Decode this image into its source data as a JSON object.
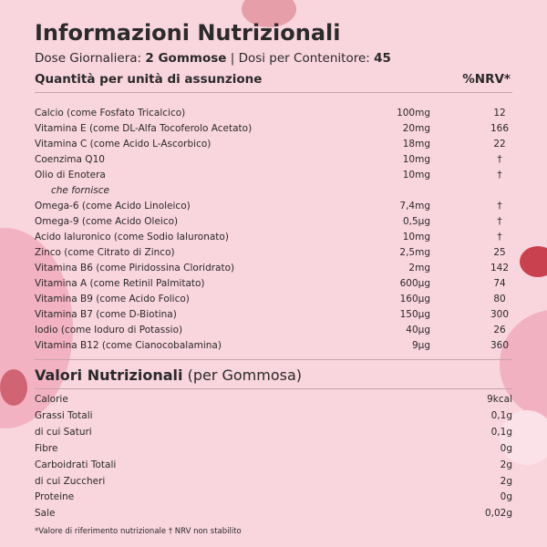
{
  "header": {
    "title": "Informazioni Nutrizionali",
    "dose_label": "Dose Giornaliera: ",
    "dose_value": "2 Gommose",
    "containers_label": "| Dosi per Contenitore: ",
    "containers_value": "45"
  },
  "ingredients": {
    "column_name": "Quantità per unità di assunzione",
    "column_nrv": "%NRV*",
    "rows": [
      {
        "name": "Calcio (come Fosfato Tricalcico)",
        "amount": "100mg",
        "nrv": "12"
      },
      {
        "name": "Vitamina E (come DL-Alfa Tocoferolo Acetato)",
        "amount": "20mg",
        "nrv": "166"
      },
      {
        "name": "Vitamina C (come Acido L-Ascorbico)",
        "amount": "18mg",
        "nrv": "22"
      },
      {
        "name": "Coenzima Q10",
        "amount": "10mg",
        "nrv": "†"
      },
      {
        "name": "Olio di Enotera",
        "amount": "10mg",
        "nrv": "†"
      },
      {
        "name": "che fornisce"
      },
      {
        "name": "Omega-6 (come Acido Linoleico)",
        "amount": "7,4mg",
        "nrv": "†"
      },
      {
        "name": "Omega-9 (come Acido Oleico)",
        "amount": "0,5µg",
        "nrv": "†"
      },
      {
        "name": "Acido Ialuronico (come Sodio Ialuronato)",
        "amount": "10mg",
        "nrv": "†"
      },
      {
        "name": "Zinco (come Citrato di Zinco)",
        "amount": "2,5mg",
        "nrv": "25"
      },
      {
        "name": "Vitamina B6 (come Piridossina Cloridrato)",
        "amount": "2mg",
        "nrv": "142"
      },
      {
        "name": "Vitamina A (come Retinil Palmitato)",
        "amount": "600µg",
        "nrv": "74"
      },
      {
        "name": "Vitamina B9 (come Acido Folico)",
        "amount": "160µg",
        "nrv": "80"
      },
      {
        "name": "Vitamina B7 (come D-Biotina)",
        "amount": "150µg",
        "nrv": "300"
      },
      {
        "name": "Iodio (come Ioduro di Potassio)",
        "amount": "40µg",
        "nrv": "26"
      },
      {
        "name": "Vitamina B12 (come Cianocobalamina)",
        "amount": "9µg",
        "nrv": "360"
      }
    ]
  },
  "nutrition": {
    "title": "Valori Nutrizionali",
    "subtitle": " (per Gommosa)",
    "rows": [
      {
        "name": "Calorie",
        "value": "9kcal"
      },
      {
        "name": "Grassi Totali",
        "value": "0,1g"
      },
      {
        "name": "di cui Saturi",
        "value": "0,1g"
      },
      {
        "name": "Fibre",
        "value": "0g"
      },
      {
        "name": "Carboidrati Totali",
        "value": "2g"
      },
      {
        "name": "di cui Zuccheri",
        "value": "2g"
      },
      {
        "name": "Proteine",
        "value": "0g"
      },
      {
        "name": "Sale",
        "value": "0,02g"
      }
    ]
  },
  "footnote": "*Valore di riferimento nutrizionale † NRV non stabilito"
}
